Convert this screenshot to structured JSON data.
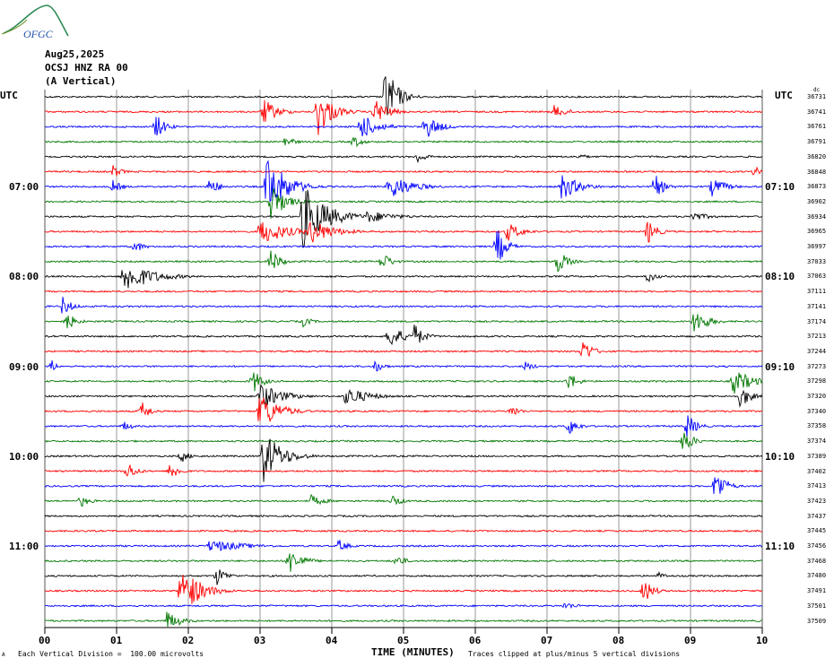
{
  "header": {
    "logo_text": "OFGC",
    "date": "Aug25,2025",
    "station": "OCSJ HNZ RA 00",
    "component": "(A Vertical)",
    "left_label": "UTC",
    "right_label": "UTC",
    "corner_mark": "dc"
  },
  "footer": {
    "scale_note": "Each Vertical Division =  100.00 microvolts",
    "clip_note": "Traces clipped at plus/minus 5 vertical divisions",
    "corner_mark": "A"
  },
  "colors": {
    "trace": [
      "#000000",
      "#ff0000",
      "#0000ff",
      "#007700"
    ],
    "grid": "#555555"
  },
  "chart_data": {
    "type": "line",
    "title": "",
    "xlabel": "TIME (MINUTES)",
    "ylabel": "",
    "x_ticks": [
      "00",
      "01",
      "02",
      "03",
      "04",
      "05",
      "06",
      "07",
      "08",
      "09",
      "10"
    ],
    "xlim": [
      0,
      10
    ],
    "minutes_per_trace": 10,
    "trace_count": 36,
    "left_time_labels": [
      {
        "row": 6,
        "text": "07:00"
      },
      {
        "row": 12,
        "text": "08:00"
      },
      {
        "row": 18,
        "text": "09:00"
      },
      {
        "row": 24,
        "text": "10:00"
      },
      {
        "row": 30,
        "text": "11:00"
      }
    ],
    "right_time_labels": [
      {
        "row": 6,
        "text": "07:10"
      },
      {
        "row": 12,
        "text": "08:10"
      },
      {
        "row": 18,
        "text": "09:10"
      },
      {
        "row": 24,
        "text": "10:10"
      },
      {
        "row": 30,
        "text": "11:10"
      }
    ],
    "row_values": [
      36731,
      36741,
      36761,
      36791,
      36820,
      36848,
      36873,
      36902,
      36934,
      36965,
      36997,
      37033,
      37063,
      37111,
      37141,
      37174,
      37213,
      37244,
      37273,
      37298,
      37320,
      37340,
      37358,
      37374,
      37389,
      37402,
      37413,
      37423,
      37437,
      37445,
      37456,
      37468,
      37480,
      37491,
      37501,
      37509
    ],
    "events": [
      {
        "row": 0,
        "minute": 4.75,
        "amp": 5,
        "dur": 0.25
      },
      {
        "row": 1,
        "minute": 3.05,
        "amp": 2,
        "dur": 0.3
      },
      {
        "row": 1,
        "minute": 3.8,
        "amp": 4,
        "dur": 0.3
      },
      {
        "row": 1,
        "minute": 4.6,
        "amp": 2,
        "dur": 0.3
      },
      {
        "row": 1,
        "minute": 7.1,
        "amp": 1,
        "dur": 0.3
      },
      {
        "row": 2,
        "minute": 1.55,
        "amp": 2,
        "dur": 0.2
      },
      {
        "row": 2,
        "minute": 4.4,
        "amp": 2,
        "dur": 0.4
      },
      {
        "row": 2,
        "minute": 5.3,
        "amp": 2,
        "dur": 0.3
      },
      {
        "row": 3,
        "minute": 3.35,
        "amp": 1,
        "dur": 0.2
      },
      {
        "row": 3,
        "minute": 4.3,
        "amp": 1,
        "dur": 0.2
      },
      {
        "row": 4,
        "minute": 5.2,
        "amp": 1,
        "dur": 0.2
      },
      {
        "row": 4,
        "minute": 7.45,
        "amp": 0.5,
        "dur": 0.2
      },
      {
        "row": 5,
        "minute": 0.95,
        "amp": 1,
        "dur": 0.2
      },
      {
        "row": 5,
        "minute": 9.9,
        "amp": 1,
        "dur": 0.2
      },
      {
        "row": 6,
        "minute": 0.95,
        "amp": 1,
        "dur": 0.2
      },
      {
        "row": 6,
        "minute": 2.3,
        "amp": 1.5,
        "dur": 0.2
      },
      {
        "row": 6,
        "minute": 3.1,
        "amp": 5,
        "dur": 0.4
      },
      {
        "row": 6,
        "minute": 4.8,
        "amp": 2,
        "dur": 0.5
      },
      {
        "row": 6,
        "minute": 7.2,
        "amp": 2,
        "dur": 0.4
      },
      {
        "row": 6,
        "minute": 8.5,
        "amp": 2,
        "dur": 0.2
      },
      {
        "row": 6,
        "minute": 9.3,
        "amp": 1.5,
        "dur": 0.3
      },
      {
        "row": 7,
        "minute": 3.15,
        "amp": 3,
        "dur": 0.3
      },
      {
        "row": 8,
        "minute": 3.6,
        "amp": 5,
        "dur": 0.5
      },
      {
        "row": 8,
        "minute": 4.5,
        "amp": 1,
        "dur": 0.6
      },
      {
        "row": 8,
        "minute": 9.0,
        "amp": 0.8,
        "dur": 0.4
      },
      {
        "row": 9,
        "minute": 3.0,
        "amp": 2,
        "dur": 0.6
      },
      {
        "row": 9,
        "minute": 3.7,
        "amp": 2,
        "dur": 0.5
      },
      {
        "row": 9,
        "minute": 6.45,
        "amp": 1.5,
        "dur": 0.3
      },
      {
        "row": 9,
        "minute": 8.4,
        "amp": 2,
        "dur": 0.2
      },
      {
        "row": 10,
        "minute": 1.25,
        "amp": 1,
        "dur": 0.2
      },
      {
        "row": 10,
        "minute": 6.3,
        "amp": 3,
        "dur": 0.2
      },
      {
        "row": 11,
        "minute": 3.15,
        "amp": 2,
        "dur": 0.2
      },
      {
        "row": 11,
        "minute": 4.7,
        "amp": 1.5,
        "dur": 0.2
      },
      {
        "row": 11,
        "minute": 7.15,
        "amp": 2,
        "dur": 0.2
      },
      {
        "row": 12,
        "minute": 1.1,
        "amp": 2.5,
        "dur": 0.6
      },
      {
        "row": 12,
        "minute": 8.4,
        "amp": 1,
        "dur": 0.2
      },
      {
        "row": 14,
        "minute": 0.25,
        "amp": 1.5,
        "dur": 0.2
      },
      {
        "row": 15,
        "minute": 0.3,
        "amp": 1.5,
        "dur": 0.2
      },
      {
        "row": 15,
        "minute": 3.6,
        "amp": 0.8,
        "dur": 0.2
      },
      {
        "row": 15,
        "minute": 9.05,
        "amp": 2,
        "dur": 0.3
      },
      {
        "row": 16,
        "minute": 4.8,
        "amp": 2,
        "dur": 0.3
      },
      {
        "row": 16,
        "minute": 5.15,
        "amp": 2,
        "dur": 0.2
      },
      {
        "row": 17,
        "minute": 7.5,
        "amp": 2,
        "dur": 0.2
      },
      {
        "row": 18,
        "minute": 0.1,
        "amp": 1,
        "dur": 0.1
      },
      {
        "row": 18,
        "minute": 4.6,
        "amp": 1,
        "dur": 0.2
      },
      {
        "row": 18,
        "minute": 6.7,
        "amp": 0.8,
        "dur": 0.2
      },
      {
        "row": 19,
        "minute": 2.9,
        "amp": 2,
        "dur": 0.2
      },
      {
        "row": 19,
        "minute": 7.3,
        "amp": 1.5,
        "dur": 0.2
      },
      {
        "row": 19,
        "minute": 9.6,
        "amp": 2,
        "dur": 0.4
      },
      {
        "row": 20,
        "minute": 3.0,
        "amp": 2,
        "dur": 0.5
      },
      {
        "row": 20,
        "minute": 4.2,
        "amp": 1.5,
        "dur": 0.5
      },
      {
        "row": 20,
        "minute": 9.7,
        "amp": 2,
        "dur": 0.2
      },
      {
        "row": 21,
        "minute": 1.35,
        "amp": 1.5,
        "dur": 0.2
      },
      {
        "row": 21,
        "minute": 3.0,
        "amp": 3,
        "dur": 0.4
      },
      {
        "row": 21,
        "minute": 6.5,
        "amp": 1,
        "dur": 0.2
      },
      {
        "row": 22,
        "minute": 1.1,
        "amp": 0.8,
        "dur": 0.2
      },
      {
        "row": 22,
        "minute": 7.3,
        "amp": 1.5,
        "dur": 0.2
      },
      {
        "row": 22,
        "minute": 8.95,
        "amp": 2,
        "dur": 0.2
      },
      {
        "row": 23,
        "minute": 8.9,
        "amp": 2,
        "dur": 0.2
      },
      {
        "row": 24,
        "minute": 1.9,
        "amp": 1,
        "dur": 0.2
      },
      {
        "row": 24,
        "minute": 3.05,
        "amp": 4,
        "dur": 0.4
      },
      {
        "row": 25,
        "minute": 1.15,
        "amp": 1.5,
        "dur": 0.2
      },
      {
        "row": 25,
        "minute": 1.75,
        "amp": 1.5,
        "dur": 0.2
      },
      {
        "row": 26,
        "minute": 9.35,
        "amp": 3,
        "dur": 0.2
      },
      {
        "row": 27,
        "minute": 0.5,
        "amp": 1,
        "dur": 0.2
      },
      {
        "row": 27,
        "minute": 3.7,
        "amp": 1,
        "dur": 0.3
      },
      {
        "row": 27,
        "minute": 4.85,
        "amp": 1,
        "dur": 0.2
      },
      {
        "row": 30,
        "minute": 2.3,
        "amp": 1,
        "dur": 0.8
      },
      {
        "row": 30,
        "minute": 4.1,
        "amp": 1,
        "dur": 0.2
      },
      {
        "row": 31,
        "minute": 3.4,
        "amp": 2,
        "dur": 0.3
      },
      {
        "row": 31,
        "minute": 4.9,
        "amp": 1,
        "dur": 0.2
      },
      {
        "row": 32,
        "minute": 2.4,
        "amp": 1.5,
        "dur": 0.2
      },
      {
        "row": 32,
        "minute": 8.55,
        "amp": 0.6,
        "dur": 0.2
      },
      {
        "row": 33,
        "minute": 1.9,
        "amp": 4,
        "dur": 0.4
      },
      {
        "row": 33,
        "minute": 8.35,
        "amp": 2,
        "dur": 0.2
      },
      {
        "row": 34,
        "minute": 7.25,
        "amp": 0.6,
        "dur": 0.3
      },
      {
        "row": 35,
        "minute": 1.7,
        "amp": 1.5,
        "dur": 0.3
      }
    ]
  }
}
